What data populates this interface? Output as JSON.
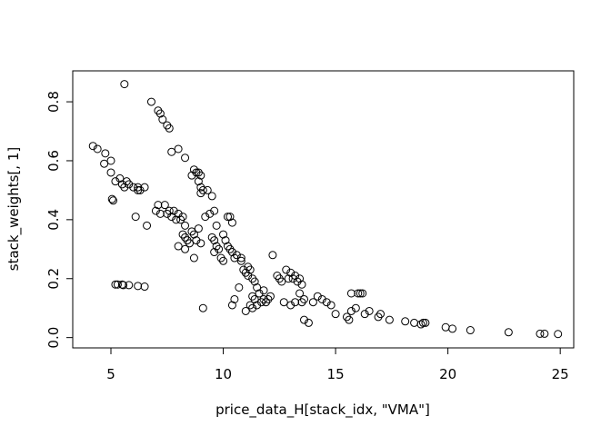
{
  "chart_data": {
    "type": "scatter",
    "title": "",
    "xlabel": "price_data_H[stack_idx, \"VMA\"]",
    "ylabel": "stack_weights[, 1]",
    "xlim": [
      3.3,
      25.6
    ],
    "ylim": [
      -0.035,
      0.905
    ],
    "xticks": [
      5,
      10,
      15,
      20,
      25
    ],
    "yticks": [
      0.0,
      0.2,
      0.4,
      0.6,
      0.8
    ],
    "xtick_labels": [
      "5",
      "10",
      "15",
      "20",
      "25"
    ],
    "ytick_labels": [
      "0.0",
      "0.2",
      "0.4",
      "0.6",
      "0.8"
    ],
    "grid": false,
    "legend": "none",
    "marker": "open-circle",
    "color": "#000000",
    "points": [
      [
        4.2,
        0.65
      ],
      [
        4.4,
        0.64
      ],
      [
        4.75,
        0.625
      ],
      [
        4.7,
        0.59
      ],
      [
        5.0,
        0.6
      ],
      [
        5.0,
        0.56
      ],
      [
        5.2,
        0.53
      ],
      [
        5.4,
        0.54
      ],
      [
        5.5,
        0.52
      ],
      [
        5.6,
        0.51
      ],
      [
        5.7,
        0.53
      ],
      [
        5.8,
        0.52
      ],
      [
        6.0,
        0.51
      ],
      [
        6.2,
        0.5
      ],
      [
        6.3,
        0.5
      ],
      [
        6.2,
        0.51
      ],
      [
        6.5,
        0.51
      ],
      [
        5.05,
        0.47
      ],
      [
        5.1,
        0.465
      ],
      [
        5.6,
        0.86
      ],
      [
        6.1,
        0.41
      ],
      [
        6.6,
        0.38
      ],
      [
        5.2,
        0.18
      ],
      [
        5.3,
        0.18
      ],
      [
        5.5,
        0.18
      ],
      [
        5.55,
        0.178
      ],
      [
        5.8,
        0.178
      ],
      [
        6.2,
        0.175
      ],
      [
        6.5,
        0.173
      ],
      [
        6.8,
        0.8
      ],
      [
        7.1,
        0.77
      ],
      [
        7.2,
        0.76
      ],
      [
        7.3,
        0.74
      ],
      [
        7.5,
        0.72
      ],
      [
        7.6,
        0.71
      ],
      [
        7.7,
        0.63
      ],
      [
        8.0,
        0.64
      ],
      [
        8.3,
        0.61
      ],
      [
        7.0,
        0.43
      ],
      [
        7.1,
        0.45
      ],
      [
        7.2,
        0.42
      ],
      [
        7.4,
        0.45
      ],
      [
        7.5,
        0.42
      ],
      [
        7.6,
        0.43
      ],
      [
        7.7,
        0.41
      ],
      [
        7.8,
        0.43
      ],
      [
        7.9,
        0.4
      ],
      [
        8.0,
        0.42
      ],
      [
        8.1,
        0.4
      ],
      [
        8.2,
        0.41
      ],
      [
        8.3,
        0.38
      ],
      [
        8.2,
        0.35
      ],
      [
        8.3,
        0.34
      ],
      [
        8.4,
        0.33
      ],
      [
        8.5,
        0.32
      ],
      [
        8.6,
        0.36
      ],
      [
        8.7,
        0.35
      ],
      [
        8.8,
        0.33
      ],
      [
        8.9,
        0.37
      ],
      [
        9.0,
        0.32
      ],
      [
        8.0,
        0.31
      ],
      [
        8.3,
        0.3
      ],
      [
        8.7,
        0.27
      ],
      [
        8.7,
        0.57
      ],
      [
        8.8,
        0.56
      ],
      [
        8.9,
        0.56
      ],
      [
        9.0,
        0.55
      ],
      [
        8.6,
        0.55
      ],
      [
        8.9,
        0.53
      ],
      [
        9.0,
        0.51
      ],
      [
        9.1,
        0.5
      ],
      [
        9.3,
        0.5
      ],
      [
        9.5,
        0.48
      ],
      [
        9.0,
        0.49
      ],
      [
        9.2,
        0.41
      ],
      [
        9.4,
        0.42
      ],
      [
        9.6,
        0.43
      ],
      [
        9.7,
        0.38
      ],
      [
        9.5,
        0.34
      ],
      [
        9.6,
        0.33
      ],
      [
        9.7,
        0.31
      ],
      [
        9.8,
        0.3
      ],
      [
        9.6,
        0.29
      ],
      [
        9.9,
        0.27
      ],
      [
        10.0,
        0.26
      ],
      [
        10.0,
        0.35
      ],
      [
        10.1,
        0.33
      ],
      [
        10.2,
        0.41
      ],
      [
        10.3,
        0.41
      ],
      [
        10.4,
        0.39
      ],
      [
        10.2,
        0.31
      ],
      [
        10.3,
        0.3
      ],
      [
        10.4,
        0.29
      ],
      [
        10.5,
        0.27
      ],
      [
        10.6,
        0.28
      ],
      [
        10.8,
        0.27
      ],
      [
        9.1,
        0.1
      ],
      [
        10.8,
        0.26
      ],
      [
        10.9,
        0.23
      ],
      [
        11.0,
        0.22
      ],
      [
        11.1,
        0.24
      ],
      [
        11.1,
        0.21
      ],
      [
        11.2,
        0.23
      ],
      [
        11.3,
        0.2
      ],
      [
        11.4,
        0.19
      ],
      [
        11.5,
        0.17
      ],
      [
        11.6,
        0.15
      ],
      [
        11.8,
        0.13
      ],
      [
        11.9,
        0.12
      ],
      [
        12.0,
        0.13
      ],
      [
        12.1,
        0.14
      ],
      [
        12.2,
        0.28
      ],
      [
        12.4,
        0.21
      ],
      [
        12.5,
        0.2
      ],
      [
        12.6,
        0.19
      ],
      [
        11.2,
        0.11
      ],
      [
        11.3,
        0.1
      ],
      [
        11.5,
        0.11
      ],
      [
        11.8,
        0.16
      ],
      [
        10.7,
        0.17
      ],
      [
        10.5,
        0.13
      ],
      [
        10.4,
        0.11
      ],
      [
        11.0,
        0.09
      ],
      [
        11.3,
        0.14
      ],
      [
        11.4,
        0.13
      ],
      [
        11.7,
        0.12
      ],
      [
        12.8,
        0.23
      ],
      [
        12.9,
        0.2
      ],
      [
        13.0,
        0.22
      ],
      [
        13.1,
        0.2
      ],
      [
        13.2,
        0.21
      ],
      [
        13.3,
        0.19
      ],
      [
        13.4,
        0.2
      ],
      [
        13.5,
        0.18
      ],
      [
        13.6,
        0.13
      ],
      [
        13.5,
        0.12
      ],
      [
        13.4,
        0.15
      ],
      [
        13.6,
        0.06
      ],
      [
        13.8,
        0.05
      ],
      [
        14.0,
        0.12
      ],
      [
        14.2,
        0.14
      ],
      [
        14.4,
        0.13
      ],
      [
        14.6,
        0.12
      ],
      [
        14.8,
        0.11
      ],
      [
        15.0,
        0.08
      ],
      [
        13.0,
        0.11
      ],
      [
        13.2,
        0.12
      ],
      [
        12.7,
        0.12
      ],
      [
        15.5,
        0.07
      ],
      [
        15.6,
        0.06
      ],
      [
        15.7,
        0.09
      ],
      [
        15.9,
        0.1
      ],
      [
        15.7,
        0.15
      ],
      [
        16.0,
        0.15
      ],
      [
        16.1,
        0.15
      ],
      [
        16.2,
        0.15
      ],
      [
        16.3,
        0.08
      ],
      [
        16.5,
        0.09
      ],
      [
        16.9,
        0.07
      ],
      [
        17.0,
        0.08
      ],
      [
        17.4,
        0.06
      ],
      [
        18.1,
        0.055
      ],
      [
        18.5,
        0.05
      ],
      [
        18.8,
        0.045
      ],
      [
        18.9,
        0.05
      ],
      [
        19.0,
        0.05
      ],
      [
        19.9,
        0.035
      ],
      [
        20.2,
        0.03
      ],
      [
        21.0,
        0.025
      ],
      [
        22.7,
        0.018
      ],
      [
        24.1,
        0.013
      ],
      [
        24.3,
        0.013
      ],
      [
        24.9,
        0.012
      ]
    ]
  }
}
